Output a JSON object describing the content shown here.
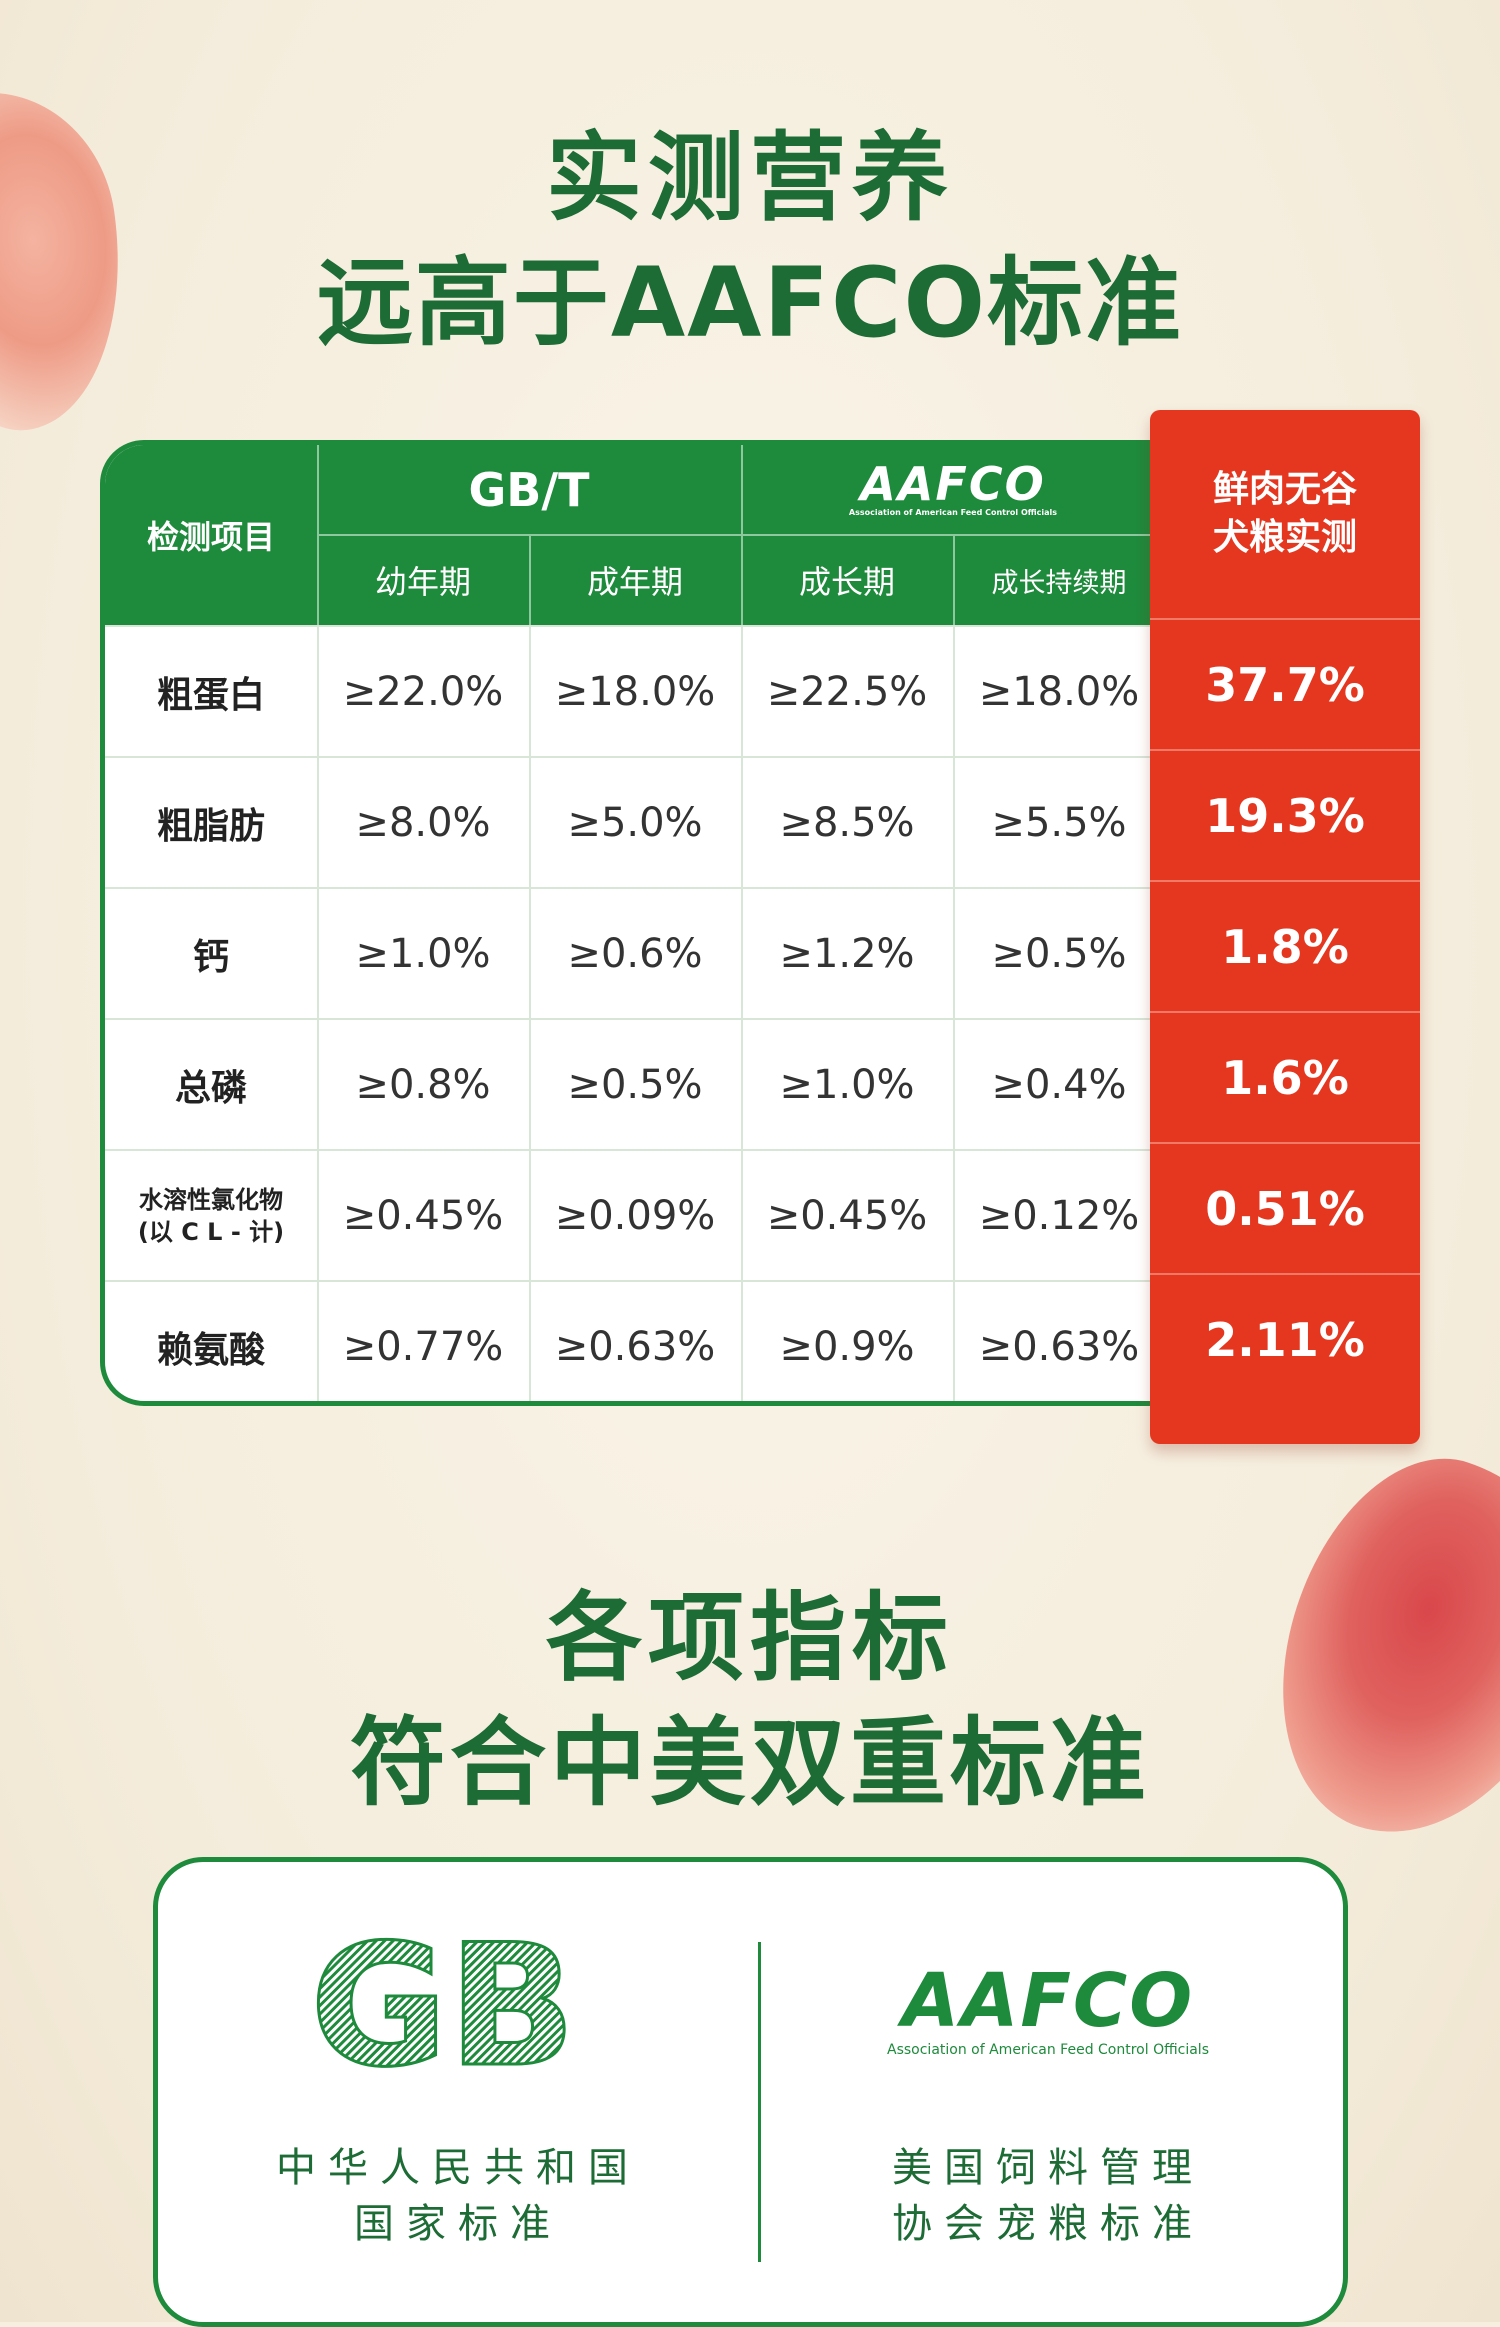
{
  "headline": {
    "line1": "实测营养",
    "line2": "远高于AAFCO标准",
    "line3": "各项指标",
    "line4": "符合中美双重标准"
  },
  "table": {
    "item_header": "检测项目",
    "gbt_header": "GB/T",
    "aafco_logo_text": "AAFCO",
    "aafco_logo_sub": "Association of American Feed Control Officials",
    "sub_headers": [
      "幼年期",
      "成年期",
      "成长期",
      "成长持续期"
    ],
    "measured_header_line1": "鲜肉无谷",
    "measured_header_line2": "犬粮实测",
    "rows": [
      {
        "label": "粗蛋白",
        "label2": "",
        "gb_young": "≥22.0%",
        "gb_adult": "≥18.0%",
        "aafco_growth": "≥22.5%",
        "aafco_maint": "≥18.0%",
        "measured": "37.7%"
      },
      {
        "label": "粗脂肪",
        "label2": "",
        "gb_young": "≥8.0%",
        "gb_adult": "≥5.0%",
        "aafco_growth": "≥8.5%",
        "aafco_maint": "≥5.5%",
        "measured": "19.3%"
      },
      {
        "label": "钙",
        "label2": "",
        "gb_young": "≥1.0%",
        "gb_adult": "≥0.6%",
        "aafco_growth": "≥1.2%",
        "aafco_maint": "≥0.5%",
        "measured": "1.8%"
      },
      {
        "label": "总磷",
        "label2": "",
        "gb_young": "≥0.8%",
        "gb_adult": "≥0.5%",
        "aafco_growth": "≥1.0%",
        "aafco_maint": "≥0.4%",
        "measured": "1.6%"
      },
      {
        "label": "水溶性氯化物",
        "label2": "(以 C L - 计)",
        "gb_young": "≥0.45%",
        "gb_adult": "≥0.09%",
        "aafco_growth": "≥0.45%",
        "aafco_maint": "≥0.12%",
        "measured": "0.51%"
      },
      {
        "label": "赖氨酸",
        "label2": "",
        "gb_young": "≥0.77%",
        "gb_adult": "≥0.63%",
        "aafco_growth": "≥0.9%",
        "aafco_maint": "≥0.63%",
        "measured": "2.11%"
      }
    ]
  },
  "standards": {
    "gb_logo_text": "GB",
    "gb_caption_line1": "中华人民共和国",
    "gb_caption_line2": "国家标准",
    "aafco_logo_text": "AAFCO",
    "aafco_logo_sub": "Association of American Feed Control Officials",
    "aafco_caption_line1": "美国饲料管理",
    "aafco_caption_line2": "协会宠粮标准"
  },
  "colors": {
    "brand_green": "#1e8a3c",
    "title_green": "#1d6b35",
    "measured_red": "#e5371f",
    "background": "#f6efe0"
  }
}
